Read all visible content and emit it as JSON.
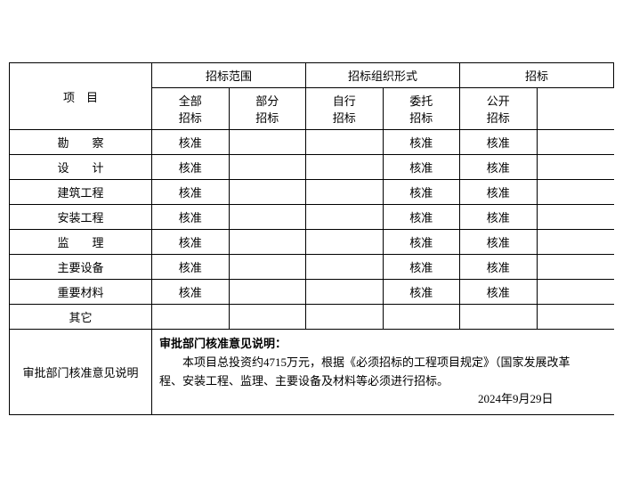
{
  "headers": {
    "project": "项　目",
    "scope": "招标范围",
    "scope_all": "全部",
    "scope_part": "部分",
    "form": "招标组织形式",
    "form_self": "自行",
    "form_delegate": "委托",
    "method": "招标",
    "method_open": "公开",
    "zhaobiao": "招标"
  },
  "rows": [
    {
      "label": "勘　　察",
      "v1": "核准",
      "v2": "",
      "v3": "",
      "v4": "核准",
      "v5": "核准"
    },
    {
      "label": "设　　计",
      "v1": "核准",
      "v2": "",
      "v3": "",
      "v4": "核准",
      "v5": "核准"
    },
    {
      "label": "建筑工程",
      "v1": "核准",
      "v2": "",
      "v3": "",
      "v4": "核准",
      "v5": "核准"
    },
    {
      "label": "安装工程",
      "v1": "核准",
      "v2": "",
      "v3": "",
      "v4": "核准",
      "v5": "核准"
    },
    {
      "label": "监　　理",
      "v1": "核准",
      "v2": "",
      "v3": "",
      "v4": "核准",
      "v5": "核准"
    },
    {
      "label": "主要设备",
      "v1": "核准",
      "v2": "",
      "v3": "",
      "v4": "核准",
      "v5": "核准"
    },
    {
      "label": "重要材料",
      "v1": "核准",
      "v2": "",
      "v3": "",
      "v4": "核准",
      "v5": "核准"
    },
    {
      "label": "其它",
      "v1": "",
      "v2": "",
      "v3": "",
      "v4": "",
      "v5": ""
    }
  ],
  "note": {
    "label": "审批部门核准意见说明",
    "title": "审批部门核准意见说明：",
    "body": "本项目总投资约4715万元，根据《必须招标的工程项目规定》（国家发展改革",
    "body2": "程、安装工程、监理、主要设备及材料等必须进行招标。",
    "date": "2024年9月29日"
  }
}
